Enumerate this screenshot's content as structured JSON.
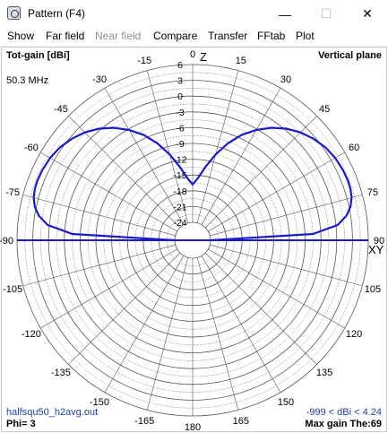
{
  "window": {
    "title": "Pattern   (F4)",
    "minimize_glyph": "—",
    "maximize_glyph": "☐",
    "close_glyph": "✕"
  },
  "menu": [
    {
      "label": "Show",
      "enabled": true
    },
    {
      "label": "Far field",
      "enabled": true
    },
    {
      "label": "Near field",
      "enabled": false
    },
    {
      "label": "Compare",
      "enabled": true
    },
    {
      "label": "Transfer",
      "enabled": true
    },
    {
      "label": "FFtab",
      "enabled": true
    },
    {
      "label": "Plot",
      "enabled": true
    }
  ],
  "plot": {
    "gain_label": "Tot-gain [dBi]",
    "plane_label": "Vertical plane",
    "frequency": "50.3 MHz",
    "axis_top": "Z",
    "axis_right": "XY",
    "filename": "halfsqu50_h2avg.out",
    "phi": "Phi= 3",
    "range_text": "-999 < dBi < 4.24",
    "max_gain_text": "Max gain The:69",
    "colors": {
      "pattern": "#1a1acc",
      "grid": "#555555",
      "baseline": "#1a1acc"
    }
  },
  "chart_data": {
    "type": "polar",
    "angle_labels": [
      "0",
      "15",
      "30",
      "45",
      "60",
      "75",
      "90",
      "105",
      "120",
      "135",
      "150",
      "165",
      "180",
      "-165",
      "-150",
      "-135",
      "-120",
      "-105",
      "-90",
      "-75",
      "-60",
      "-45",
      "-30",
      "-15"
    ],
    "radial_labels": [
      "6",
      "3",
      "0",
      "-3",
      "-6",
      "-9",
      "-12",
      "-15",
      "-18",
      "-21",
      "-24"
    ],
    "radial_range_dbi": [
      -24,
      6
    ],
    "max_gain_dbi": 4.24,
    "series": [
      {
        "theta_deg": [
          0,
          5,
          10,
          15,
          20,
          25,
          30,
          35,
          40,
          45,
          50,
          55,
          60,
          65,
          69,
          72,
          75,
          78,
          81,
          84,
          87,
          90
        ],
        "gain_dbi": [
          -16.8,
          -15.5,
          -13.2,
          -10.5,
          -7.8,
          -5.3,
          -3.2,
          -1.3,
          0.3,
          1.6,
          2.6,
          3.4,
          3.9,
          4.15,
          4.24,
          4.15,
          3.9,
          3.3,
          2.2,
          0.3,
          -4.5,
          -999
        ]
      }
    ]
  }
}
